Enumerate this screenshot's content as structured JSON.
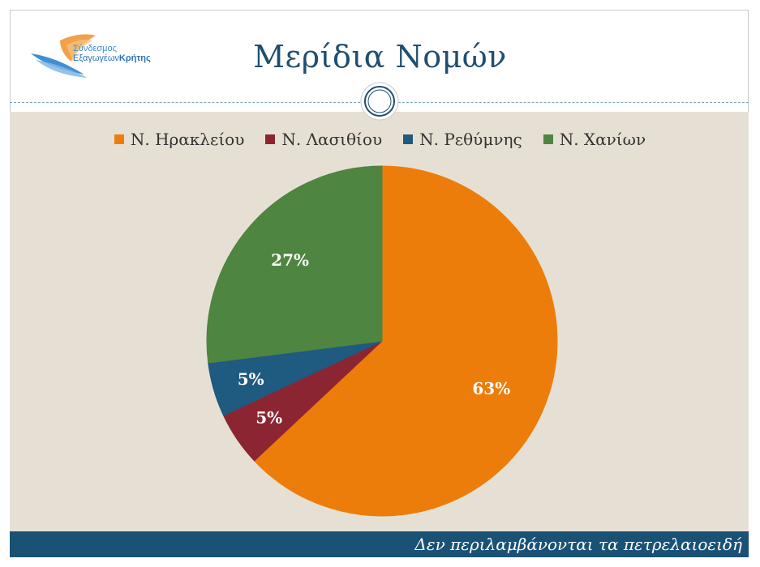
{
  "header": {
    "title": "Μερίδια Νομών",
    "logo_line1": "Σύνδεσμος",
    "logo_line2_a": "Εξαγωγέων",
    "logo_line2_b": "Κρήτης"
  },
  "footer": {
    "note": "Δεν περιλαμβάνονται τα πετρελαιοειδή"
  },
  "colors": {
    "orange": "#ed7d0a",
    "red": "#8b2532",
    "blue": "#1f5a80",
    "green": "#4e8540"
  },
  "chart_data": {
    "type": "pie",
    "categories": [
      "Ν. Ηρακλείου",
      "Ν. Λασιθίου",
      "Ν. Ρεθύμνης",
      "Ν. Χανίων"
    ],
    "values": [
      63,
      5,
      5,
      27
    ],
    "labels": [
      "63%",
      "5%",
      "5%",
      "27%"
    ],
    "legend": "top",
    "colors": [
      "#ed7d0a",
      "#8b2532",
      "#1f5a80",
      "#4e8540"
    ]
  }
}
